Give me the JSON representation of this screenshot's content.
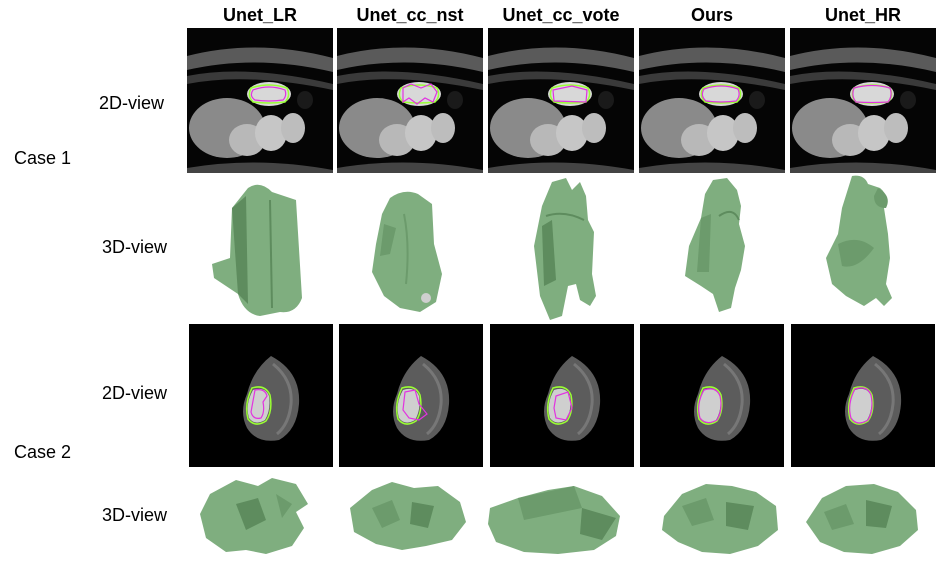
{
  "figure": {
    "columns": [
      "Unet_LR",
      "Unet_cc_nst",
      "Unet_cc_vote",
      "Ours",
      "Unet_HR"
    ],
    "cases": [
      {
        "label": "Case 1",
        "rows": [
          "2D-view",
          "3D-view"
        ]
      },
      {
        "label": "Case 2",
        "rows": [
          "2D-view",
          "3D-view"
        ]
      }
    ]
  },
  "colors": {
    "ground_truth_contour": "#9aff33",
    "prediction_contour": "#e233e0",
    "mesh_green": "#7fae7f",
    "background": "#000000"
  }
}
